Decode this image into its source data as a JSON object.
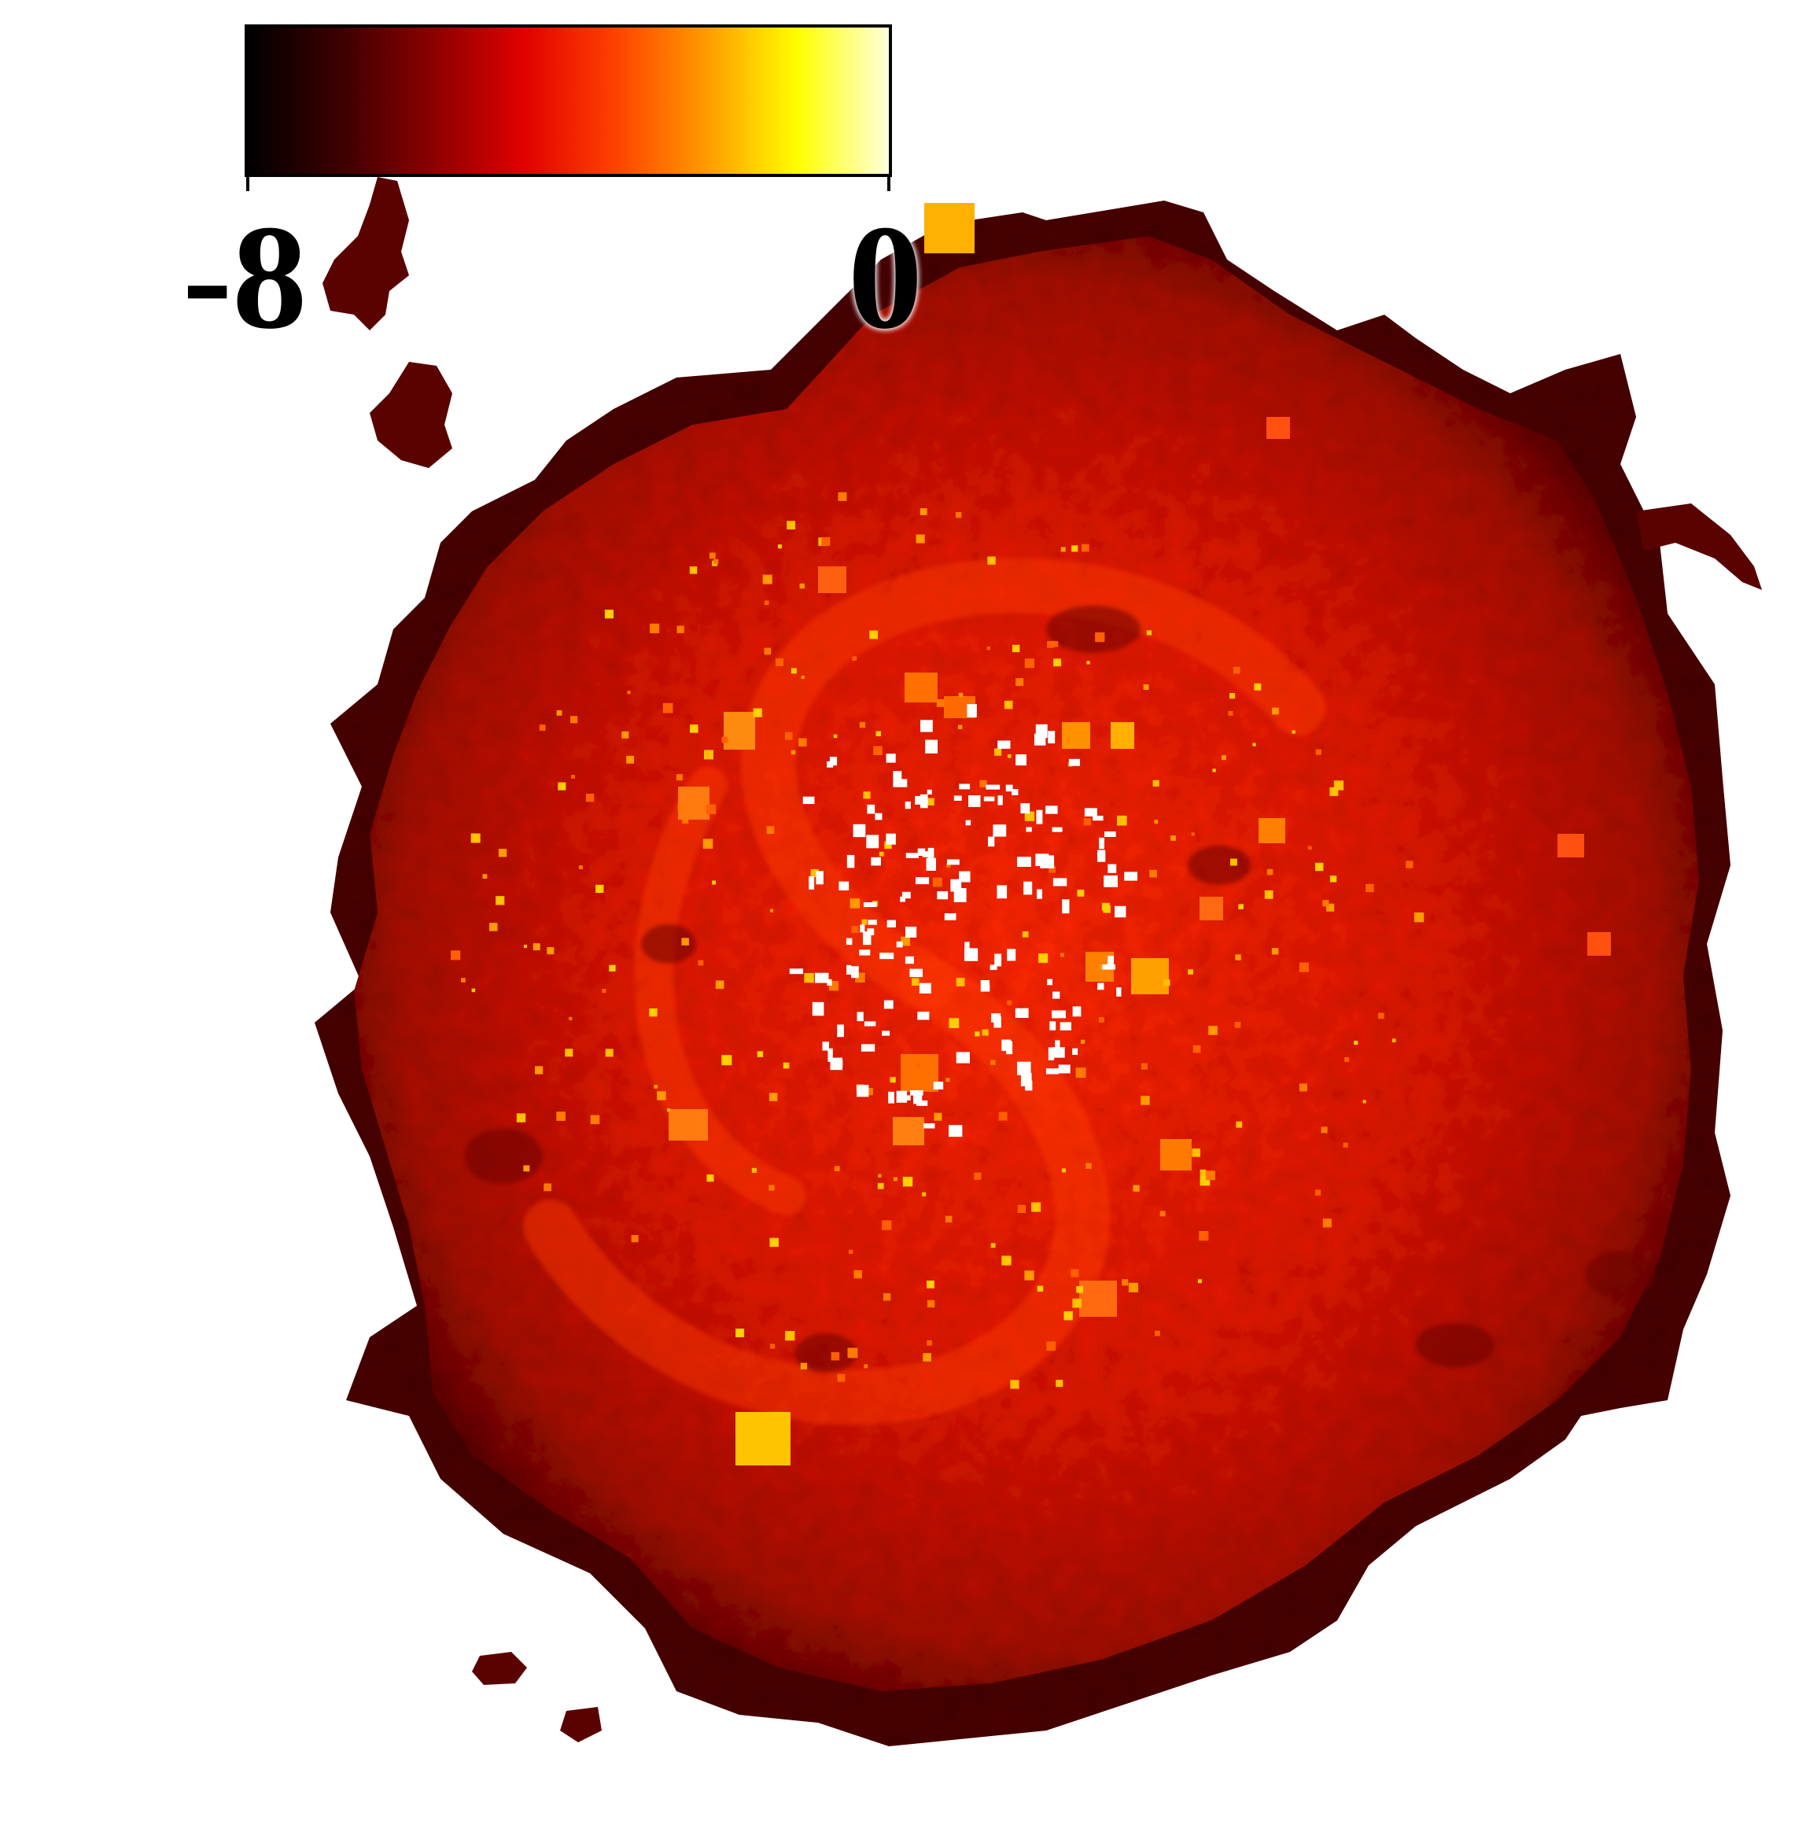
{
  "colorbar": {
    "min_label": "-8",
    "max_label": "0",
    "colormap": "hot",
    "stops": [
      "#000000",
      "#3a0000",
      "#8a0000",
      "#e00000",
      "#ff4000",
      "#ff9a00",
      "#ffff00",
      "#ffffe0"
    ]
  },
  "map": {
    "background": "#ffffff",
    "base_color": "#cc1500",
    "edge_color": "#3a0000",
    "hotspot_color": "#ffc000",
    "void_color": "#ffffff"
  }
}
